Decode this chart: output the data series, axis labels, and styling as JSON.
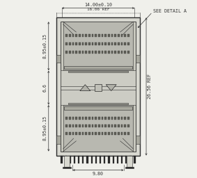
{
  "bg_color": "#f0f0eb",
  "line_color": "#2a2a2a",
  "dim_color": "#333333",
  "fill_outer": "#d8d8d0",
  "fill_inner": "#c8c8be",
  "fill_port": "#b8b8b0",
  "fill_mid": "#ccccC4",
  "fill_pin": "#606058",
  "fill_tab": "#aaaaA0",
  "font_size": 4.8,
  "dim_top_width": "14.00±0.10",
  "dim_top_sub": "16.06 REF",
  "dim_left_top": "8.95±0.15",
  "dim_left_mid": "6.6",
  "dim_left_bot": "8.95±0.15",
  "dim_right": "26.56 REF",
  "dim_bottom": "9.80",
  "detail_text": "SEE DETAIL A"
}
